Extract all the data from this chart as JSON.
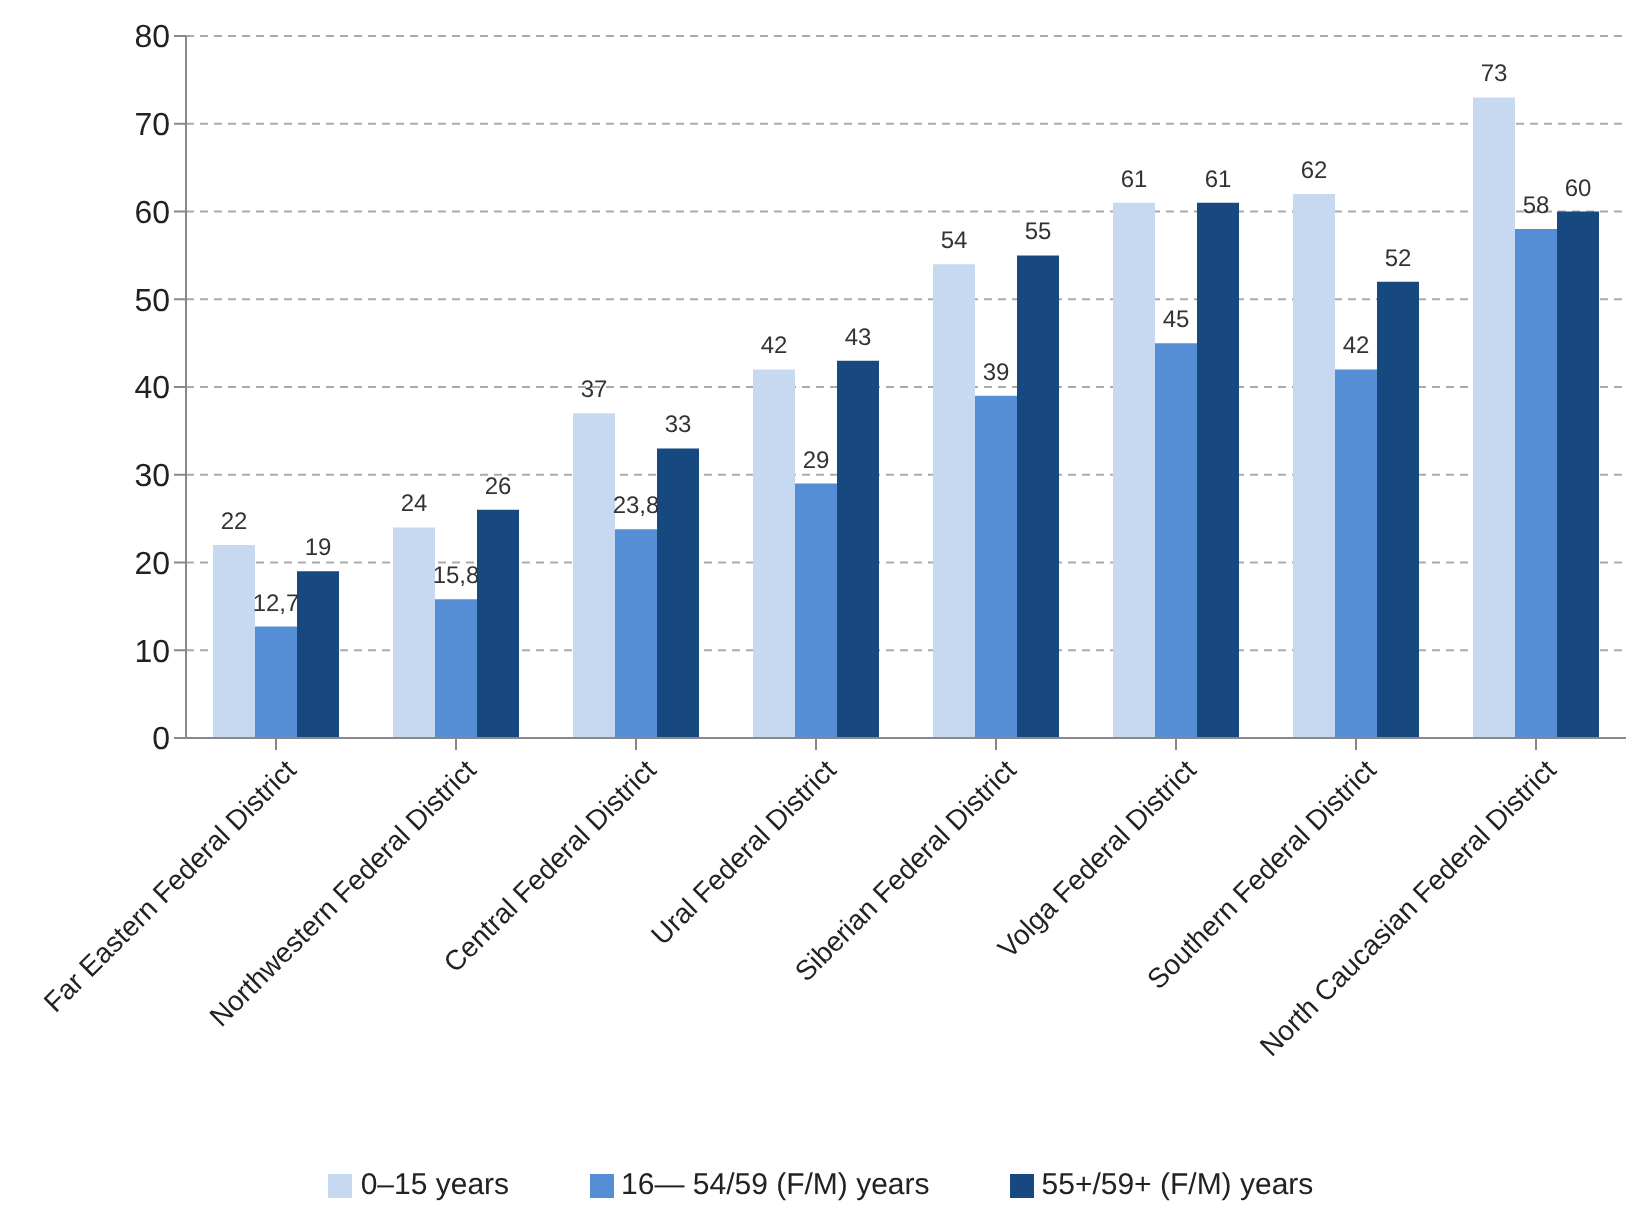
{
  "chart_data": {
    "type": "bar",
    "categories": [
      "Far Eastern Federal District",
      "Northwestern Federal District",
      "Central Federal District",
      "Ural Federal District",
      "Siberian Federal District",
      "Volga Federal District",
      "Southern Federal District",
      "North Caucasian Federal District"
    ],
    "series": [
      {
        "name": "0–15 years",
        "color": "#c6d9f0",
        "values": [
          22,
          24,
          37,
          42,
          54,
          61,
          62,
          73
        ],
        "value_labels": [
          "22",
          "24",
          "37",
          "42",
          "54",
          "61",
          "62",
          "73"
        ]
      },
      {
        "name": "16— 54/59 (F/M) years",
        "color": "#558ed5",
        "values": [
          12.7,
          15.8,
          23.8,
          29,
          39,
          45,
          42,
          58
        ],
        "value_labels": [
          "12,7",
          "15,8",
          "23,8",
          "29",
          "39",
          "45",
          "42",
          "58"
        ]
      },
      {
        "name": "55+/59+ (F/M) years",
        "color": "#17487f",
        "values": [
          19,
          26,
          33,
          43,
          55,
          61,
          52,
          60
        ],
        "value_labels": [
          "19",
          "26",
          "33",
          "43",
          "55",
          "61",
          "52",
          "60"
        ]
      }
    ],
    "ylim": [
      0,
      80
    ],
    "yticks": [
      0,
      10,
      20,
      30,
      40,
      50,
      60,
      70,
      80
    ],
    "grid": "y",
    "legend": "bottom"
  }
}
